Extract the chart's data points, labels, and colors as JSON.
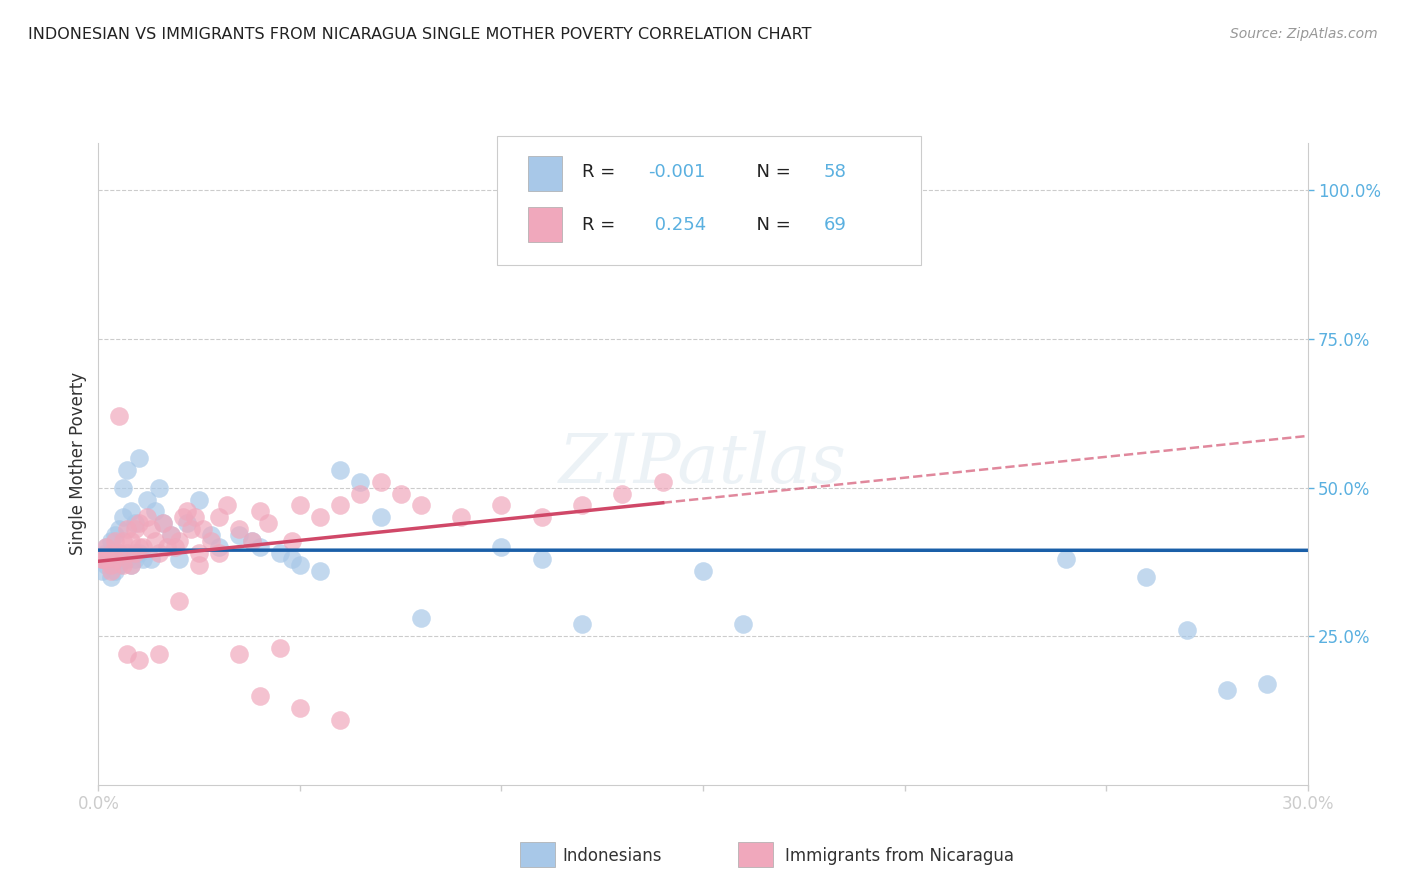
{
  "title": "INDONESIAN VS IMMIGRANTS FROM NICARAGUA SINGLE MOTHER POVERTY CORRELATION CHART",
  "source": "Source: ZipAtlas.com",
  "ylabel": "Single Mother Poverty",
  "xlim": [
    0.0,
    0.3
  ],
  "ylim": [
    0.0,
    1.08
  ],
  "ytick_positions": [
    0.25,
    0.5,
    0.75,
    1.0
  ],
  "ytick_labels_right": [
    "25.0%",
    "50.0%",
    "75.0%",
    "100.0%"
  ],
  "xtick_positions": [
    0.0,
    0.05,
    0.1,
    0.15,
    0.2,
    0.25,
    0.3
  ],
  "xtick_labels": [
    "0.0%",
    "",
    "",
    "",
    "",
    "",
    "30.0%"
  ],
  "legend_bottom_names": [
    "Indonesians",
    "Immigrants from Nicaragua"
  ],
  "R_blue": -0.001,
  "N_blue": 58,
  "R_pink": 0.254,
  "N_pink": 69,
  "blue_color": "#a8c8e8",
  "pink_color": "#f0a8bc",
  "blue_line_color": "#1a5fa8",
  "pink_line_color": "#d04868",
  "right_axis_color": "#5ab0e0",
  "grid_color": "#cccccc",
  "bg_color": "#ffffff",
  "text_color": "#333333",
  "blue_x": [
    0.001,
    0.001,
    0.002,
    0.002,
    0.002,
    0.003,
    0.003,
    0.003,
    0.004,
    0.004,
    0.004,
    0.005,
    0.005,
    0.005,
    0.006,
    0.006,
    0.006,
    0.007,
    0.007,
    0.008,
    0.008,
    0.009,
    0.009,
    0.01,
    0.01,
    0.011,
    0.012,
    0.013,
    0.014,
    0.015,
    0.016,
    0.018,
    0.02,
    0.022,
    0.025,
    0.028,
    0.03,
    0.035,
    0.038,
    0.04,
    0.045,
    0.048,
    0.05,
    0.055,
    0.06,
    0.065,
    0.07,
    0.08,
    0.1,
    0.11,
    0.12,
    0.15,
    0.16,
    0.24,
    0.26,
    0.27,
    0.28,
    0.29
  ],
  "blue_y": [
    0.38,
    0.36,
    0.39,
    0.37,
    0.4,
    0.38,
    0.41,
    0.35,
    0.38,
    0.42,
    0.36,
    0.39,
    0.43,
    0.37,
    0.38,
    0.45,
    0.5,
    0.38,
    0.53,
    0.37,
    0.46,
    0.38,
    0.44,
    0.39,
    0.55,
    0.38,
    0.48,
    0.38,
    0.46,
    0.5,
    0.44,
    0.42,
    0.38,
    0.44,
    0.48,
    0.42,
    0.4,
    0.42,
    0.41,
    0.4,
    0.39,
    0.38,
    0.37,
    0.36,
    0.53,
    0.51,
    0.45,
    0.28,
    0.4,
    0.38,
    0.27,
    0.36,
    0.27,
    0.38,
    0.35,
    0.26,
    0.16,
    0.17
  ],
  "pink_x": [
    0.001,
    0.002,
    0.002,
    0.003,
    0.003,
    0.004,
    0.004,
    0.005,
    0.005,
    0.006,
    0.006,
    0.007,
    0.007,
    0.008,
    0.008,
    0.009,
    0.009,
    0.01,
    0.01,
    0.011,
    0.012,
    0.013,
    0.014,
    0.015,
    0.016,
    0.017,
    0.018,
    0.019,
    0.02,
    0.021,
    0.022,
    0.023,
    0.024,
    0.025,
    0.026,
    0.028,
    0.03,
    0.032,
    0.035,
    0.038,
    0.04,
    0.042,
    0.045,
    0.048,
    0.05,
    0.055,
    0.06,
    0.065,
    0.07,
    0.075,
    0.08,
    0.09,
    0.1,
    0.11,
    0.12,
    0.13,
    0.14,
    0.003,
    0.007,
    0.01,
    0.015,
    0.02,
    0.025,
    0.03,
    0.035,
    0.04,
    0.05,
    0.06,
    0.001
  ],
  "pink_y": [
    0.38,
    0.38,
    0.4,
    0.37,
    0.39,
    0.38,
    0.41,
    0.62,
    0.39,
    0.37,
    0.41,
    0.43,
    0.39,
    0.37,
    0.41,
    0.39,
    0.43,
    0.4,
    0.44,
    0.4,
    0.45,
    0.43,
    0.41,
    0.39,
    0.44,
    0.4,
    0.42,
    0.4,
    0.41,
    0.45,
    0.46,
    0.43,
    0.45,
    0.39,
    0.43,
    0.41,
    0.45,
    0.47,
    0.43,
    0.41,
    0.46,
    0.44,
    0.23,
    0.41,
    0.47,
    0.45,
    0.47,
    0.49,
    0.51,
    0.49,
    0.47,
    0.45,
    0.47,
    0.45,
    0.47,
    0.49,
    0.51,
    0.36,
    0.22,
    0.21,
    0.22,
    0.31,
    0.37,
    0.39,
    0.22,
    0.15,
    0.13,
    0.11,
    0.38
  ]
}
